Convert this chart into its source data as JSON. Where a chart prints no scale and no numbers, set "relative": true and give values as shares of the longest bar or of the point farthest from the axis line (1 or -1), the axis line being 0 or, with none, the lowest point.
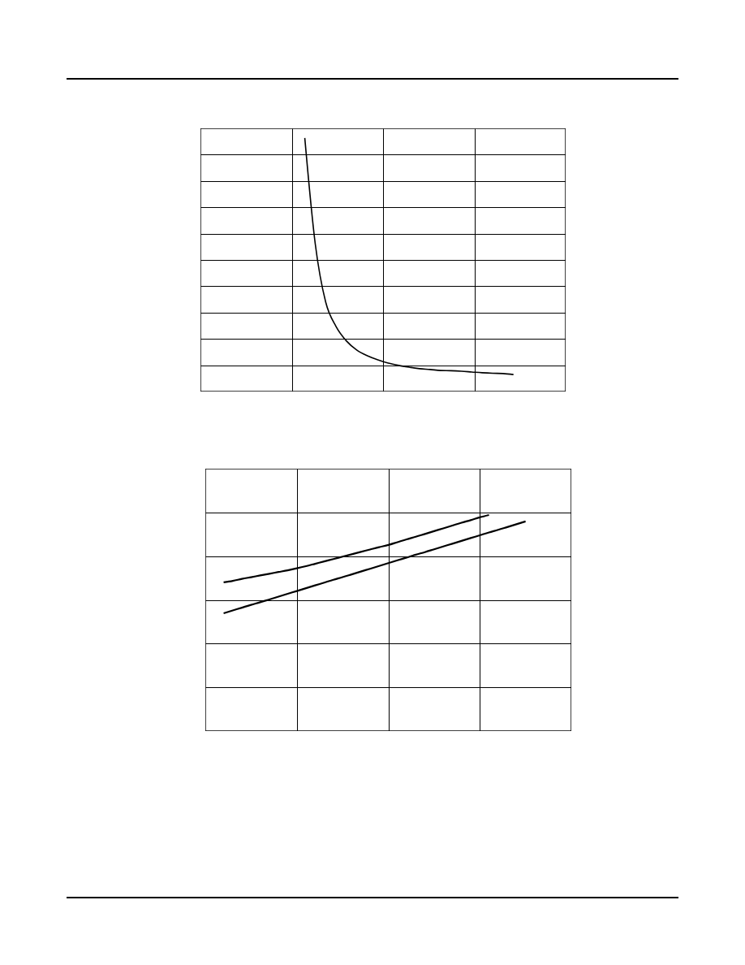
{
  "chart_data": [
    {
      "type": "line",
      "relative": true,
      "grid": true,
      "categories": [
        null,
        null,
        null,
        null,
        null,
        null,
        null,
        null,
        null,
        null,
        null,
        null,
        null,
        null,
        null,
        null,
        null,
        null,
        null,
        null,
        null,
        null,
        null,
        null,
        null,
        null,
        null,
        null,
        null,
        null,
        null,
        null,
        null,
        null,
        null,
        null
      ],
      "series": [
        {
          "color": "#000000",
          "values": [
            null,
            null,
            null,
            null,
            null,
            null,
            null,
            null,
            null,
            null,
            1,
            0.583,
            0.353,
            0.256,
            0.199,
            0.163,
            0.141,
            0.125,
            0.112,
            0.103,
            0.096,
            0.09,
            0.087,
            0.083,
            0.082,
            0.08,
            0.077,
            0.074,
            0.072,
            0.071,
            0.067,
            null,
            null,
            null,
            null,
            null
          ]
        }
      ]
    },
    {
      "type": "line",
      "relative": true,
      "grid": true,
      "categories": [
        null,
        null,
        null,
        null,
        null,
        null,
        null,
        null,
        null,
        null,
        null,
        null,
        null,
        null,
        null,
        null,
        null,
        null,
        null,
        null,
        null,
        null,
        null,
        null,
        null,
        null,
        null,
        null,
        null,
        null,
        null,
        null,
        null,
        null,
        null,
        null,
        null,
        null,
        null,
        null,
        null
      ],
      "series": [
        {
          "color": "#000000",
          "values": [
            null,
            null,
            0.688,
            0.695,
            0.704,
            0.712,
            0.72,
            0.728,
            0.736,
            0.744,
            0.753,
            0.763,
            0.774,
            0.785,
            0.796,
            0.807,
            0.818,
            0.829,
            0.84,
            0.851,
            0.861,
            0.874,
            0.887,
            0.899,
            0.912,
            0.925,
            0.938,
            0.951,
            0.964,
            0.976,
            0.989,
            1,
            null,
            null,
            null,
            null,
            null,
            null,
            null,
            null,
            null
          ]
        },
        {
          "color": "#000000",
          "values": [
            null,
            null,
            0.545,
            0.558,
            0.571,
            0.584,
            0.596,
            0.609,
            0.622,
            0.635,
            0.648,
            0.661,
            0.674,
            0.687,
            0.7,
            0.712,
            0.725,
            0.738,
            0.751,
            0.764,
            0.777,
            0.79,
            0.803,
            0.816,
            0.828,
            0.841,
            0.854,
            0.867,
            0.88,
            0.893,
            0.906,
            0.919,
            0.931,
            0.944,
            0.957,
            0.97,
            null,
            null,
            null,
            null,
            null
          ]
        }
      ]
    }
  ]
}
